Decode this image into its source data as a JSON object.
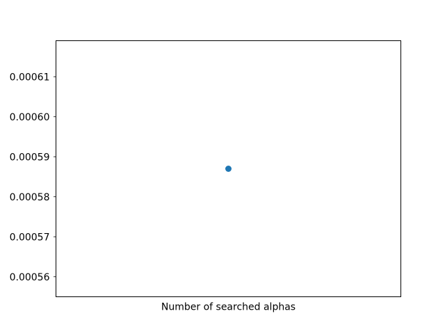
{
  "chart_data": {
    "type": "scatter",
    "title": "",
    "xlabel": "Number of searched alphas",
    "ylabel": "",
    "x": [
      0
    ],
    "y": [
      0.000587
    ],
    "xlim": [
      -1,
      1
    ],
    "ylim": [
      0.000555,
      0.000619
    ],
    "yticks": [
      0.00056,
      0.00057,
      0.00058,
      0.00059,
      0.0006,
      0.00061
    ],
    "ytick_labels": [
      "0.00056",
      "0.00057",
      "0.00058",
      "0.00059",
      "0.00060",
      "0.00061"
    ],
    "xticks": [],
    "grid": false,
    "legend": "none",
    "marker_color": "#1f77b4"
  }
}
